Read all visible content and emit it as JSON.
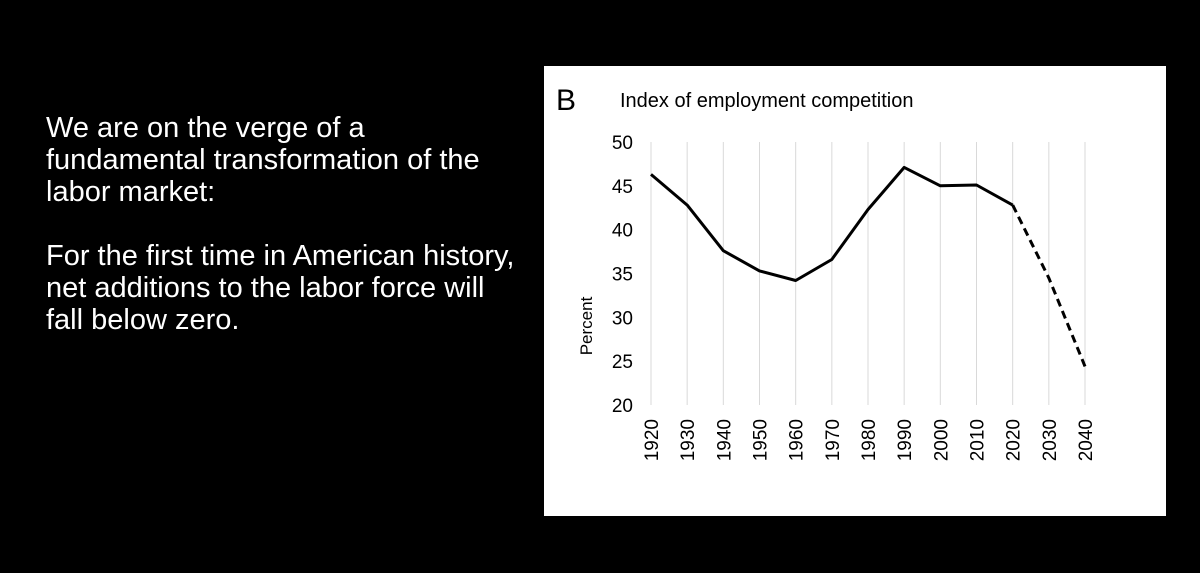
{
  "intro": {
    "paragraph_1": "We are on the verge of a fundamental transformation of the labor market:",
    "paragraph_2": "For the first time in American history, net additions to the labor force will fall below zero."
  },
  "chart_data": {
    "type": "line",
    "panel_label": "B",
    "title": "Index of employment competition",
    "xlabel": "",
    "ylabel": "Percent",
    "ylim": [
      20,
      50
    ],
    "yticks": [
      20,
      25,
      30,
      35,
      40,
      45,
      50
    ],
    "categories": [
      "1920",
      "1930",
      "1940",
      "1950",
      "1960",
      "1970",
      "1980",
      "1990",
      "2000",
      "2010",
      "2020",
      "2030",
      "2040"
    ],
    "series": [
      {
        "style": "solid",
        "values": [
          46.3,
          42.8,
          37.6,
          35.3,
          34.2,
          36.6,
          42.3,
          47.1,
          45.0,
          45.1,
          42.8,
          null,
          null
        ]
      },
      {
        "style": "dashed",
        "values": [
          null,
          null,
          null,
          null,
          null,
          null,
          null,
          null,
          null,
          null,
          42.8,
          34.5,
          24.4
        ]
      }
    ],
    "grid": "vertical",
    "colors": {
      "line": "#000000",
      "grid": "#d9d9d9",
      "background": "#ffffff"
    }
  }
}
